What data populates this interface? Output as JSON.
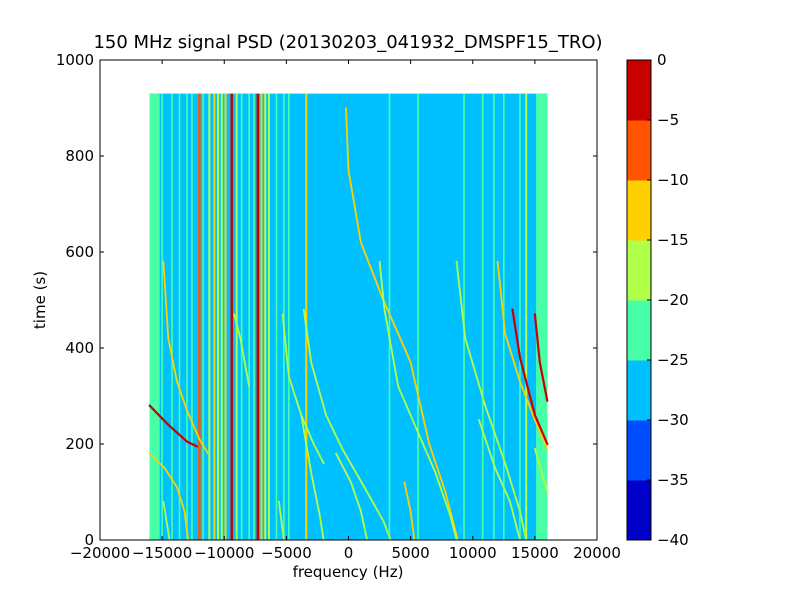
{
  "chart_data": {
    "type": "heatmap",
    "title": "150 MHz signal PSD (20130203_041932_DMSPF15_TRO)",
    "xlabel": "frequency (Hz)",
    "ylabel": "time (s)",
    "xlim": [
      -20000,
      20000
    ],
    "ylim": [
      0,
      1000
    ],
    "xticks": [
      -20000,
      -15000,
      -10000,
      -5000,
      0,
      5000,
      10000,
      15000,
      20000
    ],
    "yticks": [
      0,
      200,
      400,
      600,
      800,
      1000
    ],
    "xtick_labels": [
      "−20000",
      "−15000",
      "−10000",
      "−5000",
      "0",
      "5000",
      "10000",
      "15000",
      "20000"
    ],
    "ytick_labels": [
      "0",
      "200",
      "400",
      "600",
      "800",
      "1000"
    ],
    "data_extent": {
      "x": [
        -16000,
        16000
      ],
      "y": [
        0,
        930
      ]
    },
    "colorbar": {
      "levels": [
        -40,
        -35,
        -30,
        -25,
        -20,
        -15,
        -10,
        -5,
        0
      ],
      "tick_labels": [
        "−40",
        "−35",
        "−30",
        "−25",
        "−20",
        "−15",
        "−10",
        "−5",
        "0"
      ],
      "colors": [
        "#0000c8",
        "#004cff",
        "#00c0ff",
        "#48ffa8",
        "#b0ff48",
        "#ffd000",
        "#ff5400",
        "#c80000"
      ]
    },
    "background_level": -27,
    "edge_bands": [
      {
        "x": [
          -16000,
          -15200
        ],
        "level": -22
      },
      {
        "x": [
          15100,
          16000
        ],
        "level": -22
      }
    ],
    "vertical_lines": [
      {
        "x": -15000,
        "level": -22
      },
      {
        "x": -14200,
        "level": -22
      },
      {
        "x": -13600,
        "level": -22
      },
      {
        "x": -13000,
        "level": -22
      },
      {
        "x": -12600,
        "level": -22
      },
      {
        "x": -12000,
        "level": -8
      },
      {
        "x": -11700,
        "level": -22
      },
      {
        "x": -11200,
        "level": -17
      },
      {
        "x": -10800,
        "level": -12
      },
      {
        "x": -10500,
        "level": -17
      },
      {
        "x": -10200,
        "level": -17
      },
      {
        "x": -9900,
        "level": -12
      },
      {
        "x": -9400,
        "level": -3
      },
      {
        "x": -9000,
        "level": -17
      },
      {
        "x": -8600,
        "level": -22
      },
      {
        "x": -8000,
        "level": -22
      },
      {
        "x": -7600,
        "level": -22
      },
      {
        "x": -7300,
        "level": -3
      },
      {
        "x": -7000,
        "level": -12
      },
      {
        "x": -6700,
        "level": -17
      },
      {
        "x": -6400,
        "level": -17
      },
      {
        "x": -5800,
        "level": -22
      },
      {
        "x": -5200,
        "level": -22
      },
      {
        "x": -4800,
        "level": -22
      },
      {
        "x": -3400,
        "level": -12
      },
      {
        "x": 3300,
        "level": -22
      },
      {
        "x": 5600,
        "level": -22
      },
      {
        "x": 9300,
        "level": -22
      },
      {
        "x": 10800,
        "level": -22
      },
      {
        "x": 11700,
        "level": -22
      },
      {
        "x": 12500,
        "level": -22
      },
      {
        "x": 13800,
        "level": -22
      },
      {
        "x": 14300,
        "level": -17
      }
    ],
    "traces": [
      {
        "level": -3,
        "points": [
          [
            -16000,
            280
          ],
          [
            -14500,
            240
          ],
          [
            -13000,
            205
          ],
          [
            -12200,
            195
          ]
        ]
      },
      {
        "level": -12,
        "points": [
          [
            -16000,
            180
          ],
          [
            -14800,
            150
          ],
          [
            -13800,
            110
          ],
          [
            -13200,
            60
          ],
          [
            -12900,
            0
          ]
        ]
      },
      {
        "level": -12,
        "points": [
          [
            -14900,
            580
          ],
          [
            -14500,
            420
          ],
          [
            -13800,
            330
          ],
          [
            -13000,
            270
          ],
          [
            -12000,
            210
          ],
          [
            -11300,
            180
          ]
        ]
      },
      {
        "level": -17,
        "points": [
          [
            -14900,
            80
          ],
          [
            -14400,
            0
          ]
        ]
      },
      {
        "level": -17,
        "points": [
          [
            -9200,
            470
          ],
          [
            -8700,
            420
          ],
          [
            -8000,
            320
          ]
        ]
      },
      {
        "level": -17,
        "points": [
          [
            -5600,
            80
          ],
          [
            -5200,
            0
          ]
        ]
      },
      {
        "level": -17,
        "points": [
          [
            -5300,
            470
          ],
          [
            -4800,
            340
          ],
          [
            -3800,
            260
          ],
          [
            -2800,
            200
          ],
          [
            -2000,
            160
          ]
        ]
      },
      {
        "level": -17,
        "points": [
          [
            -3800,
            260
          ],
          [
            -3000,
            140
          ],
          [
            -2300,
            50
          ],
          [
            -2000,
            0
          ]
        ]
      },
      {
        "level": -17,
        "points": [
          [
            -3600,
            480
          ],
          [
            -3000,
            370
          ],
          [
            -1800,
            260
          ],
          [
            -500,
            190
          ],
          [
            1500,
            100
          ],
          [
            2800,
            40
          ],
          [
            3400,
            0
          ]
        ]
      },
      {
        "level": -12,
        "points": [
          [
            -200,
            900
          ],
          [
            0,
            770
          ],
          [
            1000,
            620
          ],
          [
            2800,
            500
          ],
          [
            4000,
            430
          ],
          [
            5000,
            370
          ],
          [
            6500,
            200
          ],
          [
            7800,
            100
          ],
          [
            8800,
            0
          ]
        ]
      },
      {
        "level": -17,
        "points": [
          [
            2500,
            580
          ],
          [
            2900,
            480
          ],
          [
            4000,
            320
          ],
          [
            5500,
            230
          ],
          [
            7000,
            140
          ],
          [
            8200,
            50
          ],
          [
            8700,
            0
          ]
        ]
      },
      {
        "level": -17,
        "points": [
          [
            -1000,
            180
          ],
          [
            200,
            120
          ],
          [
            1000,
            60
          ],
          [
            1500,
            0
          ]
        ]
      },
      {
        "level": -12,
        "points": [
          [
            4500,
            120
          ],
          [
            5000,
            60
          ],
          [
            5300,
            0
          ]
        ]
      },
      {
        "level": -17,
        "points": [
          [
            8700,
            580
          ],
          [
            9400,
            420
          ],
          [
            11000,
            280
          ],
          [
            12600,
            160
          ],
          [
            13800,
            60
          ],
          [
            14300,
            0
          ]
        ]
      },
      {
        "level": -12,
        "points": [
          [
            12000,
            580
          ],
          [
            12600,
            430
          ],
          [
            13800,
            330
          ],
          [
            15000,
            250
          ],
          [
            16000,
            190
          ]
        ]
      },
      {
        "level": -3,
        "points": [
          [
            13200,
            480
          ],
          [
            13800,
            380
          ],
          [
            15000,
            260
          ],
          [
            16000,
            200
          ]
        ]
      },
      {
        "level": -3,
        "points": [
          [
            15000,
            470
          ],
          [
            15400,
            370
          ],
          [
            16000,
            290
          ]
        ]
      },
      {
        "level": -17,
        "points": [
          [
            10500,
            250
          ],
          [
            11800,
            150
          ],
          [
            13000,
            80
          ],
          [
            13800,
            0
          ]
        ]
      },
      {
        "level": -17,
        "points": [
          [
            15000,
            190
          ],
          [
            16000,
            100
          ]
        ]
      }
    ]
  }
}
